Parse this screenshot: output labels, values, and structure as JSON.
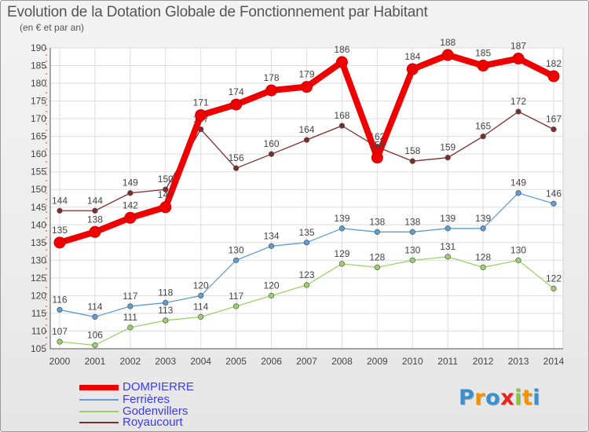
{
  "header": {
    "title": "Evolution de la Dotation Globale de Fonctionnement par Habitant",
    "subtitle": "(en € et par an)"
  },
  "logo": {
    "letters": [
      "P",
      "r",
      "o",
      "x",
      "i",
      "t",
      "i"
    ],
    "colors": [
      "#3a8fd0",
      "#f29400",
      "#3a8fd0",
      "#e8231b",
      "#8cc63f",
      "#f29400",
      "#3a8fd0"
    ]
  },
  "chart_data": {
    "type": "line",
    "title": "Evolution de la Dotation Globale de Fonctionnement par Habitant",
    "subtitle": "(en € et par an)",
    "x": [
      "2000",
      "2001",
      "2002",
      "2003",
      "2004",
      "2005",
      "2006",
      "2007",
      "2008",
      "2009",
      "2010",
      "2011",
      "2012",
      "2013",
      "2014"
    ],
    "ylim": [
      105,
      190
    ],
    "yticks": [
      105,
      110,
      115,
      120,
      125,
      130,
      135,
      140,
      145,
      150,
      155,
      160,
      165,
      170,
      175,
      180,
      185,
      190
    ],
    "grid": true,
    "legend_position": "bottom-left",
    "series": [
      {
        "name": "Royaucourt",
        "color": "#7b2c2c",
        "values": [
          144,
          144,
          149,
          150,
          167,
          156,
          160,
          164,
          168,
          162,
          158,
          159,
          165,
          172,
          167
        ]
      },
      {
        "name": "Godenvillers",
        "color": "#9ad26a",
        "values": [
          107,
          106,
          111,
          113,
          114,
          117,
          120,
          123,
          129,
          128,
          130,
          131,
          128,
          130,
          122
        ]
      },
      {
        "name": "Ferrières",
        "color": "#5f9dd3",
        "values": [
          116,
          114,
          117,
          118,
          120,
          130,
          134,
          135,
          139,
          138,
          138,
          139,
          139,
          149,
          146
        ]
      },
      {
        "name": "DOMPIERRE",
        "color": "#ee0000",
        "values": [
          135,
          138,
          142,
          145,
          171,
          174,
          178,
          179,
          186,
          159,
          184,
          188,
          185,
          187,
          182
        ]
      }
    ],
    "legend": [
      {
        "name": "DOMPIERRE",
        "color": "#ee0000",
        "text_color": "#3b3bf0"
      },
      {
        "name": "Ferrières",
        "color": "#5f9dd3",
        "text_color": "#3b3bf0"
      },
      {
        "name": "Godenvillers",
        "color": "#9ad26a",
        "text_color": "#3b3bf0"
      },
      {
        "name": "Royaucourt",
        "color": "#7b2c2c",
        "text_color": "#3b3bf0"
      }
    ]
  }
}
